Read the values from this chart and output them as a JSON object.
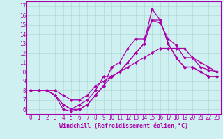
{
  "background_color": "#cef0f0",
  "grid_color": "#b0d8d8",
  "line_color": "#aa00aa",
  "marker": "D",
  "markersize": 2.0,
  "linewidth": 0.9,
  "xlabel": "Windchill (Refroidissement éolien,°C)",
  "xlabel_fontsize": 6.0,
  "tick_fontsize": 5.5,
  "xlim": [
    -0.5,
    23.5
  ],
  "ylim": [
    5.5,
    17.5
  ],
  "xticks": [
    0,
    1,
    2,
    3,
    4,
    5,
    6,
    7,
    8,
    9,
    10,
    11,
    12,
    13,
    14,
    15,
    16,
    17,
    18,
    19,
    20,
    21,
    22,
    23
  ],
  "yticks": [
    6,
    7,
    8,
    9,
    10,
    11,
    12,
    13,
    14,
    15,
    16,
    17
  ],
  "series": [
    [
      8.0,
      8.0,
      8.0,
      7.5,
      6.0,
      5.8,
      6.0,
      6.5,
      7.5,
      8.5,
      10.5,
      11.0,
      12.5,
      13.5,
      13.5,
      15.5,
      15.2,
      13.5,
      12.8,
      11.5,
      11.5,
      10.5,
      10.2,
      10.0
    ],
    [
      8.0,
      8.0,
      8.0,
      7.5,
      6.5,
      6.0,
      6.5,
      7.0,
      8.0,
      9.5,
      9.5,
      10.0,
      11.0,
      12.0,
      13.0,
      16.7,
      15.5,
      13.0,
      11.5,
      10.5,
      10.5,
      10.0,
      9.5,
      9.5
    ],
    [
      8.0,
      8.0,
      8.0,
      7.5,
      6.5,
      6.0,
      6.0,
      6.5,
      7.5,
      8.5,
      9.5,
      10.0,
      11.0,
      12.0,
      13.0,
      15.5,
      15.5,
      13.0,
      11.5,
      10.5,
      10.5,
      10.0,
      9.5,
      9.5
    ],
    [
      8.0,
      8.0,
      8.0,
      8.0,
      7.5,
      7.0,
      7.0,
      7.5,
      8.5,
      9.0,
      9.5,
      10.0,
      10.5,
      11.0,
      11.5,
      12.0,
      12.5,
      12.5,
      12.5,
      12.5,
      11.5,
      11.0,
      10.5,
      10.0
    ]
  ]
}
